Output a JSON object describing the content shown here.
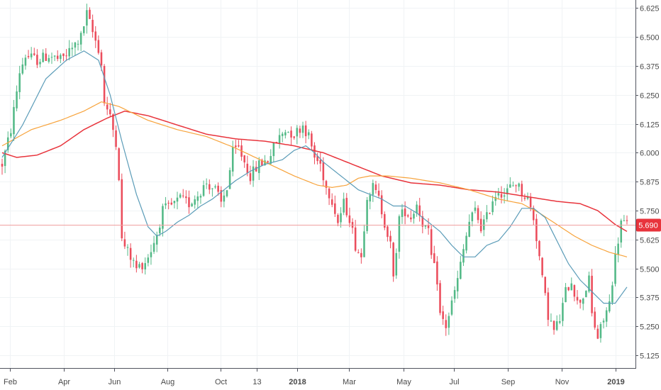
{
  "chart_data": {
    "type": "candlestick",
    "title": "",
    "xlabel": "",
    "ylabel": "",
    "ylim": [
      5.07,
      6.66
    ],
    "grid": true,
    "y_ticks": [
      "6.625",
      "6.500",
      "6.375",
      "6.250",
      "6.125",
      "6.000",
      "5.875",
      "5.750",
      "5.625",
      "5.500",
      "5.375",
      "5.250",
      "5.125"
    ],
    "x_ticks": [
      {
        "label": "Feb",
        "bold": false
      },
      {
        "label": "Apr",
        "bold": false
      },
      {
        "label": "Jun",
        "bold": false
      },
      {
        "label": "Aug",
        "bold": false
      },
      {
        "label": "Oct",
        "bold": false
      },
      {
        "label": "13",
        "bold": false
      },
      {
        "label": "2018",
        "bold": true
      },
      {
        "label": "Mar",
        "bold": false
      },
      {
        "label": "May",
        "bold": false
      },
      {
        "label": "Jul",
        "bold": false
      },
      {
        "label": "Sep",
        "bold": false
      },
      {
        "label": "Nov",
        "bold": false
      },
      {
        "label": "2019",
        "bold": true
      }
    ],
    "last_price": "5.690",
    "colors": {
      "up": "#53b987",
      "down": "#eb4d5c",
      "ma_fast": "#5b9cb8",
      "ma_mid": "#f7a33b",
      "ma_slow": "#e8343c",
      "price_line": "#f0a0a0",
      "grid": "#f0f3f5",
      "axis_text": "#4a4a4a"
    },
    "anchors": [
      [
        0,
        5.95
      ],
      [
        3,
        6.1
      ],
      [
        6,
        6.35
      ],
      [
        8,
        6.42
      ],
      [
        12,
        6.4
      ],
      [
        16,
        6.42
      ],
      [
        20,
        6.4
      ],
      [
        24,
        6.45
      ],
      [
        27,
        6.5
      ],
      [
        29,
        6.6
      ],
      [
        31,
        6.52
      ],
      [
        33,
        6.45
      ],
      [
        34,
        6.38
      ],
      [
        35,
        6.22
      ],
      [
        37,
        6.15
      ],
      [
        39,
        6.05
      ],
      [
        40,
        5.9
      ],
      [
        41,
        5.62
      ],
      [
        44,
        5.55
      ],
      [
        46,
        5.5
      ],
      [
        49,
        5.53
      ],
      [
        51,
        5.58
      ],
      [
        53,
        5.65
      ],
      [
        55,
        5.75
      ],
      [
        58,
        5.77
      ],
      [
        61,
        5.8
      ],
      [
        64,
        5.78
      ],
      [
        67,
        5.82
      ],
      [
        70,
        5.87
      ],
      [
        73,
        5.84
      ],
      [
        75,
        5.78
      ],
      [
        77,
        5.85
      ],
      [
        79,
        6.0
      ],
      [
        81,
        6.02
      ],
      [
        83,
        5.96
      ],
      [
        85,
        5.9
      ],
      [
        88,
        5.95
      ],
      [
        91,
        5.97
      ],
      [
        94,
        6.05
      ],
      [
        97,
        6.1
      ],
      [
        100,
        6.08
      ],
      [
        103,
        6.12
      ],
      [
        105,
        6.07
      ],
      [
        107,
        5.98
      ],
      [
        109,
        5.95
      ],
      [
        111,
        5.85
      ],
      [
        113,
        5.8
      ],
      [
        115,
        5.7
      ],
      [
        117,
        5.78
      ],
      [
        119,
        5.72
      ],
      [
        121,
        5.6
      ],
      [
        123,
        5.55
      ],
      [
        125,
        5.82
      ],
      [
        127,
        5.85
      ],
      [
        129,
        5.8
      ],
      [
        131,
        5.7
      ],
      [
        133,
        5.6
      ],
      [
        134,
        5.45
      ],
      [
        136,
        5.72
      ],
      [
        138,
        5.75
      ],
      [
        140,
        5.72
      ],
      [
        142,
        5.78
      ],
      [
        144,
        5.7
      ],
      [
        146,
        5.65
      ],
      [
        147,
        5.55
      ],
      [
        149,
        5.45
      ],
      [
        150,
        5.3
      ],
      [
        152,
        5.25
      ],
      [
        154,
        5.35
      ],
      [
        156,
        5.45
      ],
      [
        158,
        5.58
      ],
      [
        160,
        5.7
      ],
      [
        162,
        5.75
      ],
      [
        164,
        5.68
      ],
      [
        166,
        5.72
      ],
      [
        168,
        5.8
      ],
      [
        170,
        5.84
      ],
      [
        172,
        5.82
      ],
      [
        174,
        5.85
      ],
      [
        176,
        5.87
      ],
      [
        178,
        5.83
      ],
      [
        180,
        5.8
      ],
      [
        182,
        5.72
      ],
      [
        184,
        5.55
      ],
      [
        185,
        5.45
      ],
      [
        187,
        5.3
      ],
      [
        189,
        5.23
      ],
      [
        191,
        5.28
      ],
      [
        193,
        5.4
      ],
      [
        195,
        5.45
      ],
      [
        197,
        5.35
      ],
      [
        199,
        5.38
      ],
      [
        201,
        5.45
      ],
      [
        202,
        5.3
      ],
      [
        204,
        5.2
      ],
      [
        206,
        5.28
      ],
      [
        208,
        5.35
      ],
      [
        210,
        5.55
      ],
      [
        212,
        5.7
      ],
      [
        214,
        5.69
      ]
    ],
    "ma_fast": [
      [
        0,
        5.98
      ],
      [
        7,
        6.12
      ],
      [
        15,
        6.32
      ],
      [
        22,
        6.4
      ],
      [
        28,
        6.44
      ],
      [
        33,
        6.4
      ],
      [
        37,
        6.25
      ],
      [
        41,
        6.05
      ],
      [
        46,
        5.82
      ],
      [
        50,
        5.68
      ],
      [
        53,
        5.64
      ],
      [
        56,
        5.66
      ],
      [
        60,
        5.7
      ],
      [
        64,
        5.73
      ],
      [
        68,
        5.77
      ],
      [
        72,
        5.8
      ],
      [
        76,
        5.84
      ],
      [
        80,
        5.88
      ],
      [
        85,
        5.92
      ],
      [
        90,
        5.95
      ],
      [
        96,
        5.97
      ],
      [
        100,
        6.01
      ],
      [
        104,
        6.03
      ],
      [
        107,
        6.0
      ],
      [
        110,
        5.96
      ],
      [
        114,
        5.92
      ],
      [
        118,
        5.88
      ],
      [
        122,
        5.84
      ],
      [
        126,
        5.82
      ],
      [
        130,
        5.8
      ],
      [
        134,
        5.77
      ],
      [
        138,
        5.77
      ],
      [
        142,
        5.74
      ],
      [
        146,
        5.7
      ],
      [
        150,
        5.66
      ],
      [
        154,
        5.6
      ],
      [
        158,
        5.55
      ],
      [
        162,
        5.55
      ],
      [
        166,
        5.6
      ],
      [
        170,
        5.62
      ],
      [
        174,
        5.68
      ],
      [
        178,
        5.76
      ],
      [
        182,
        5.76
      ],
      [
        186,
        5.72
      ],
      [
        190,
        5.62
      ],
      [
        194,
        5.52
      ],
      [
        198,
        5.45
      ],
      [
        202,
        5.4
      ],
      [
        206,
        5.35
      ],
      [
        210,
        5.35
      ],
      [
        214,
        5.42
      ]
    ],
    "ma_mid": [
      [
        0,
        6.03
      ],
      [
        10,
        6.1
      ],
      [
        20,
        6.14
      ],
      [
        28,
        6.18
      ],
      [
        34,
        6.22
      ],
      [
        40,
        6.2
      ],
      [
        50,
        6.14
      ],
      [
        60,
        6.1
      ],
      [
        70,
        6.07
      ],
      [
        80,
        6.02
      ],
      [
        90,
        5.96
      ],
      [
        100,
        5.9
      ],
      [
        108,
        5.86
      ],
      [
        113,
        5.85
      ],
      [
        118,
        5.86
      ],
      [
        122,
        5.89
      ],
      [
        126,
        5.9
      ],
      [
        132,
        5.9
      ],
      [
        140,
        5.89
      ],
      [
        150,
        5.87
      ],
      [
        160,
        5.84
      ],
      [
        170,
        5.8
      ],
      [
        178,
        5.78
      ],
      [
        184,
        5.74
      ],
      [
        190,
        5.69
      ],
      [
        196,
        5.64
      ],
      [
        202,
        5.6
      ],
      [
        208,
        5.57
      ],
      [
        214,
        5.55
      ]
    ],
    "ma_slow": [
      [
        0,
        6.0
      ],
      [
        5,
        5.98
      ],
      [
        12,
        5.99
      ],
      [
        20,
        6.03
      ],
      [
        28,
        6.1
      ],
      [
        36,
        6.15
      ],
      [
        42,
        6.18
      ],
      [
        50,
        6.16
      ],
      [
        60,
        6.12
      ],
      [
        70,
        6.08
      ],
      [
        80,
        6.06
      ],
      [
        90,
        6.05
      ],
      [
        100,
        6.03
      ],
      [
        110,
        6.0
      ],
      [
        120,
        5.95
      ],
      [
        130,
        5.9
      ],
      [
        140,
        5.87
      ],
      [
        150,
        5.86
      ],
      [
        160,
        5.84
      ],
      [
        170,
        5.83
      ],
      [
        180,
        5.81
      ],
      [
        190,
        5.79
      ],
      [
        198,
        5.78
      ],
      [
        204,
        5.75
      ],
      [
        210,
        5.69
      ],
      [
        214,
        5.66
      ]
    ],
    "candle_count": 215
  }
}
